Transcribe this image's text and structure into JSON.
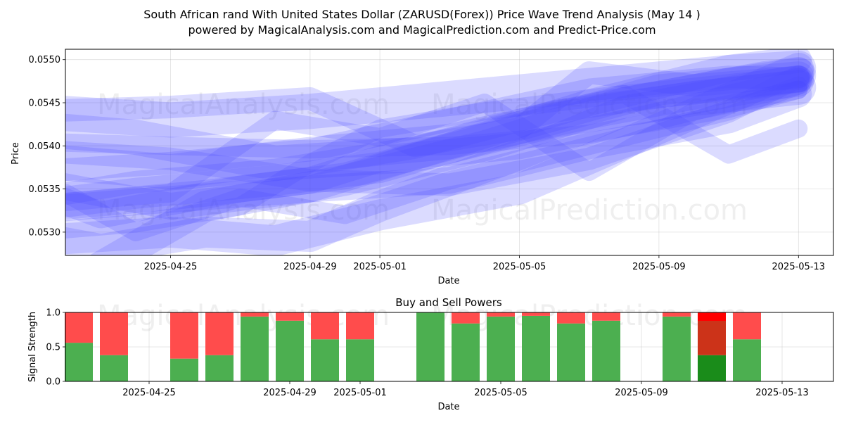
{
  "header": {
    "title_line1": "South African rand With United States Dollar (ZARUSD(Forex)) Price Wave Trend Analysis (May 14 )",
    "title_line2": "powered by MagicalAnalysis.com and MagicalPrediction.com and Predict-Price.com"
  },
  "watermarks": [
    "MagicalAnalysis.com",
    "MagicalPrediction.com"
  ],
  "chart_data": [
    {
      "type": "line",
      "title": "",
      "xlabel": "Date",
      "ylabel": "Price",
      "xlim": [
        "2025-04-20",
        "2025-05-13"
      ],
      "ylim": [
        0.05273,
        0.05512
      ],
      "yticks": [
        "0.0530",
        "0.0535",
        "0.0540",
        "0.0545",
        "0.0550"
      ],
      "xticks": [
        "2025-04-25",
        "2025-04-29",
        "2025-05-01",
        "2025-05-05",
        "2025-05-09",
        "2025-05-13"
      ],
      "grid": true,
      "line_color": "#4a4aff",
      "series": [
        {
          "x": [
            "2025-04-21",
            "2025-04-25",
            "2025-04-29",
            "2025-05-03",
            "2025-05-07",
            "2025-05-11",
            "2025-05-13"
          ],
          "values": [
            0.05405,
            0.054,
            0.05396,
            0.054,
            0.05414,
            0.05443,
            0.05465
          ]
        },
        {
          "x": [
            "2025-04-21",
            "2025-04-25",
            "2025-04-29",
            "2025-05-03",
            "2025-05-07",
            "2025-05-11",
            "2025-05-13"
          ],
          "values": [
            0.05395,
            0.05385,
            0.0536,
            0.05355,
            0.05385,
            0.0544,
            0.0548
          ]
        },
        {
          "x": [
            "2025-04-21",
            "2025-04-23",
            "2025-04-27",
            "2025-04-29",
            "2025-05-01",
            "2025-05-05",
            "2025-05-09",
            "2025-05-13"
          ],
          "values": [
            0.0535,
            0.0532,
            0.0535,
            0.0536,
            0.05385,
            0.054,
            0.05435,
            0.05475
          ]
        },
        {
          "x": [
            "2025-04-21",
            "2025-04-25",
            "2025-04-28",
            "2025-05-01",
            "2025-05-05",
            "2025-05-09",
            "2025-05-13"
          ],
          "values": [
            0.0529,
            0.053,
            0.0529,
            0.0532,
            0.0535,
            0.0542,
            0.0549
          ]
        },
        {
          "x": [
            "2025-04-21",
            "2025-04-24",
            "2025-04-28",
            "2025-05-02",
            "2025-05-06",
            "2025-05-10",
            "2025-05-13"
          ],
          "values": [
            0.0542,
            0.0541,
            0.0538,
            0.0539,
            0.0543,
            0.05455,
            0.05468
          ]
        },
        {
          "x": [
            "2025-04-22",
            "2025-04-24",
            "2025-04-27",
            "2025-04-30",
            "2025-05-03",
            "2025-05-07",
            "2025-05-11",
            "2025-05-13"
          ],
          "values": [
            0.05345,
            0.053,
            0.0534,
            0.0532,
            0.0536,
            0.054,
            0.0544,
            0.0547
          ]
        },
        {
          "x": [
            "2025-04-21",
            "2025-04-25",
            "2025-04-29",
            "2025-05-02",
            "2025-05-05",
            "2025-05-07",
            "2025-05-10",
            "2025-05-13"
          ],
          "values": [
            0.0544,
            0.05445,
            0.05455,
            0.054,
            0.0542,
            0.05485,
            0.0547,
            0.0548
          ]
        },
        {
          "x": [
            "2025-04-21",
            "2025-04-25",
            "2025-04-29",
            "2025-05-03",
            "2025-05-07",
            "2025-05-11",
            "2025-05-13"
          ],
          "values": [
            0.0536,
            0.0533,
            0.0535,
            0.054,
            0.0545,
            0.0549,
            0.055
          ]
        },
        {
          "x": [
            "2025-04-21",
            "2025-04-24",
            "2025-04-28",
            "2025-05-01",
            "2025-05-05",
            "2025-05-09",
            "2025-05-13"
          ],
          "values": [
            0.0533,
            0.05345,
            0.0536,
            0.05375,
            0.0542,
            0.05465,
            0.0548
          ]
        },
        {
          "x": [
            "2025-04-22",
            "2025-04-25",
            "2025-04-29",
            "2025-05-03",
            "2025-05-07",
            "2025-05-11",
            "2025-05-13"
          ],
          "values": [
            0.0538,
            0.0537,
            0.0539,
            0.05405,
            0.0544,
            0.0547,
            0.05482
          ]
        },
        {
          "x": [
            "2025-04-21",
            "2025-04-24",
            "2025-04-27",
            "2025-04-29",
            "2025-05-01",
            "2025-05-04",
            "2025-05-08",
            "2025-05-11",
            "2025-05-13"
          ],
          "values": [
            0.053,
            0.0531,
            0.0533,
            0.0538,
            0.0542,
            0.0544,
            0.0546,
            0.0539,
            0.0542
          ]
        },
        {
          "x": [
            "2025-04-21",
            "2025-04-24",
            "2025-04-28",
            "2025-05-02",
            "2025-05-06",
            "2025-05-10",
            "2025-05-13"
          ],
          "values": [
            0.05338,
            0.05358,
            0.05372,
            0.05398,
            0.0544,
            0.05462,
            0.05475
          ]
        },
        {
          "x": [
            "2025-04-22",
            "2025-04-26",
            "2025-04-30",
            "2025-05-04",
            "2025-05-08",
            "2025-05-12",
            "2025-05-13"
          ],
          "values": [
            0.0533,
            0.05345,
            0.05365,
            0.0541,
            0.05455,
            0.05472,
            0.05478
          ]
        },
        {
          "x": [
            "2025-04-23",
            "2025-04-26",
            "2025-04-30",
            "2025-05-04",
            "2025-05-08",
            "2025-05-12",
            "2025-05-13"
          ],
          "values": [
            0.0526,
            0.0533,
            0.0536,
            0.054,
            0.0545,
            0.0548,
            0.05485
          ]
        },
        {
          "x": [
            "2025-04-21",
            "2025-04-25",
            "2025-04-29",
            "2025-05-03",
            "2025-05-07",
            "2025-05-11",
            "2025-05-13"
          ],
          "values": [
            0.0544,
            0.0543,
            0.0544,
            0.05455,
            0.0547,
            0.05485,
            0.0549
          ]
        },
        {
          "x": [
            "2025-04-22",
            "2025-04-25",
            "2025-04-28",
            "2025-05-01",
            "2025-05-04",
            "2025-05-07",
            "2025-05-10",
            "2025-05-13"
          ],
          "values": [
            0.05335,
            0.05345,
            0.0543,
            0.0541,
            0.0545,
            0.0537,
            0.0544,
            0.05465
          ]
        },
        {
          "x": [
            "2025-04-21",
            "2025-04-25",
            "2025-04-29",
            "2025-05-03",
            "2025-05-07",
            "2025-05-11",
            "2025-05-13"
          ],
          "values": [
            0.0537,
            0.0538,
            0.05395,
            0.0543,
            0.05465,
            0.0548,
            0.05478
          ]
        },
        {
          "x": [
            "2025-04-21",
            "2025-04-24",
            "2025-04-29",
            "2025-05-03",
            "2025-05-07",
            "2025-05-11",
            "2025-05-13"
          ],
          "values": [
            0.05325,
            0.05335,
            0.0535,
            0.0536,
            0.054,
            0.0543,
            0.0546
          ]
        },
        {
          "x": [
            "2025-04-21",
            "2025-04-23",
            "2025-04-26",
            "2025-04-29",
            "2025-05-01",
            "2025-05-05",
            "2025-05-08",
            "2025-05-12",
            "2025-05-13"
          ],
          "values": [
            0.05295,
            0.0528,
            0.053,
            0.05295,
            0.0533,
            0.0539,
            0.0544,
            0.0547,
            0.05475
          ]
        }
      ]
    },
    {
      "type": "bar",
      "title": "Buy and Sell Powers",
      "xlabel": "Date",
      "ylabel": "Signal Strength",
      "ylim": [
        0,
        1
      ],
      "yticks": [
        "0.0",
        "0.5",
        "1.0"
      ],
      "xticks": [
        "2025-04-25",
        "2025-04-29",
        "2025-05-01",
        "2025-05-05",
        "2025-05-09",
        "2025-05-13"
      ],
      "grid": true,
      "colors": {
        "buy": "#4caf50",
        "sell": "#ff4c4c",
        "buy_highlight": "#1a8c1a",
        "sell_highlight": "#cc3319",
        "sell_top": "#ff0000"
      },
      "x": [
        "2025-04-23",
        "2025-04-24",
        "2025-04-26",
        "2025-04-27",
        "2025-04-28",
        "2025-04-29",
        "2025-04-30",
        "2025-05-01",
        "2025-05-03",
        "2025-05-04",
        "2025-05-05",
        "2025-05-06",
        "2025-05-07",
        "2025-05-08",
        "2025-05-10",
        "2025-05-11",
        "2025-05-12"
      ],
      "series": [
        {
          "name": "Buy",
          "values": [
            0.56,
            0.38,
            0.33,
            0.38,
            0.94,
            0.88,
            0.61,
            0.61,
            1.0,
            0.84,
            0.94,
            0.95,
            0.84,
            0.88,
            0.94,
            0.38,
            0.61
          ]
        },
        {
          "name": "Sell",
          "values": [
            0.44,
            0.62,
            0.67,
            0.62,
            0.06,
            0.12,
            0.39,
            0.39,
            0.0,
            0.16,
            0.06,
            0.05,
            0.16,
            0.12,
            0.06,
            0.62,
            0.39
          ]
        }
      ],
      "highlight_bar": "2025-05-11"
    }
  ]
}
